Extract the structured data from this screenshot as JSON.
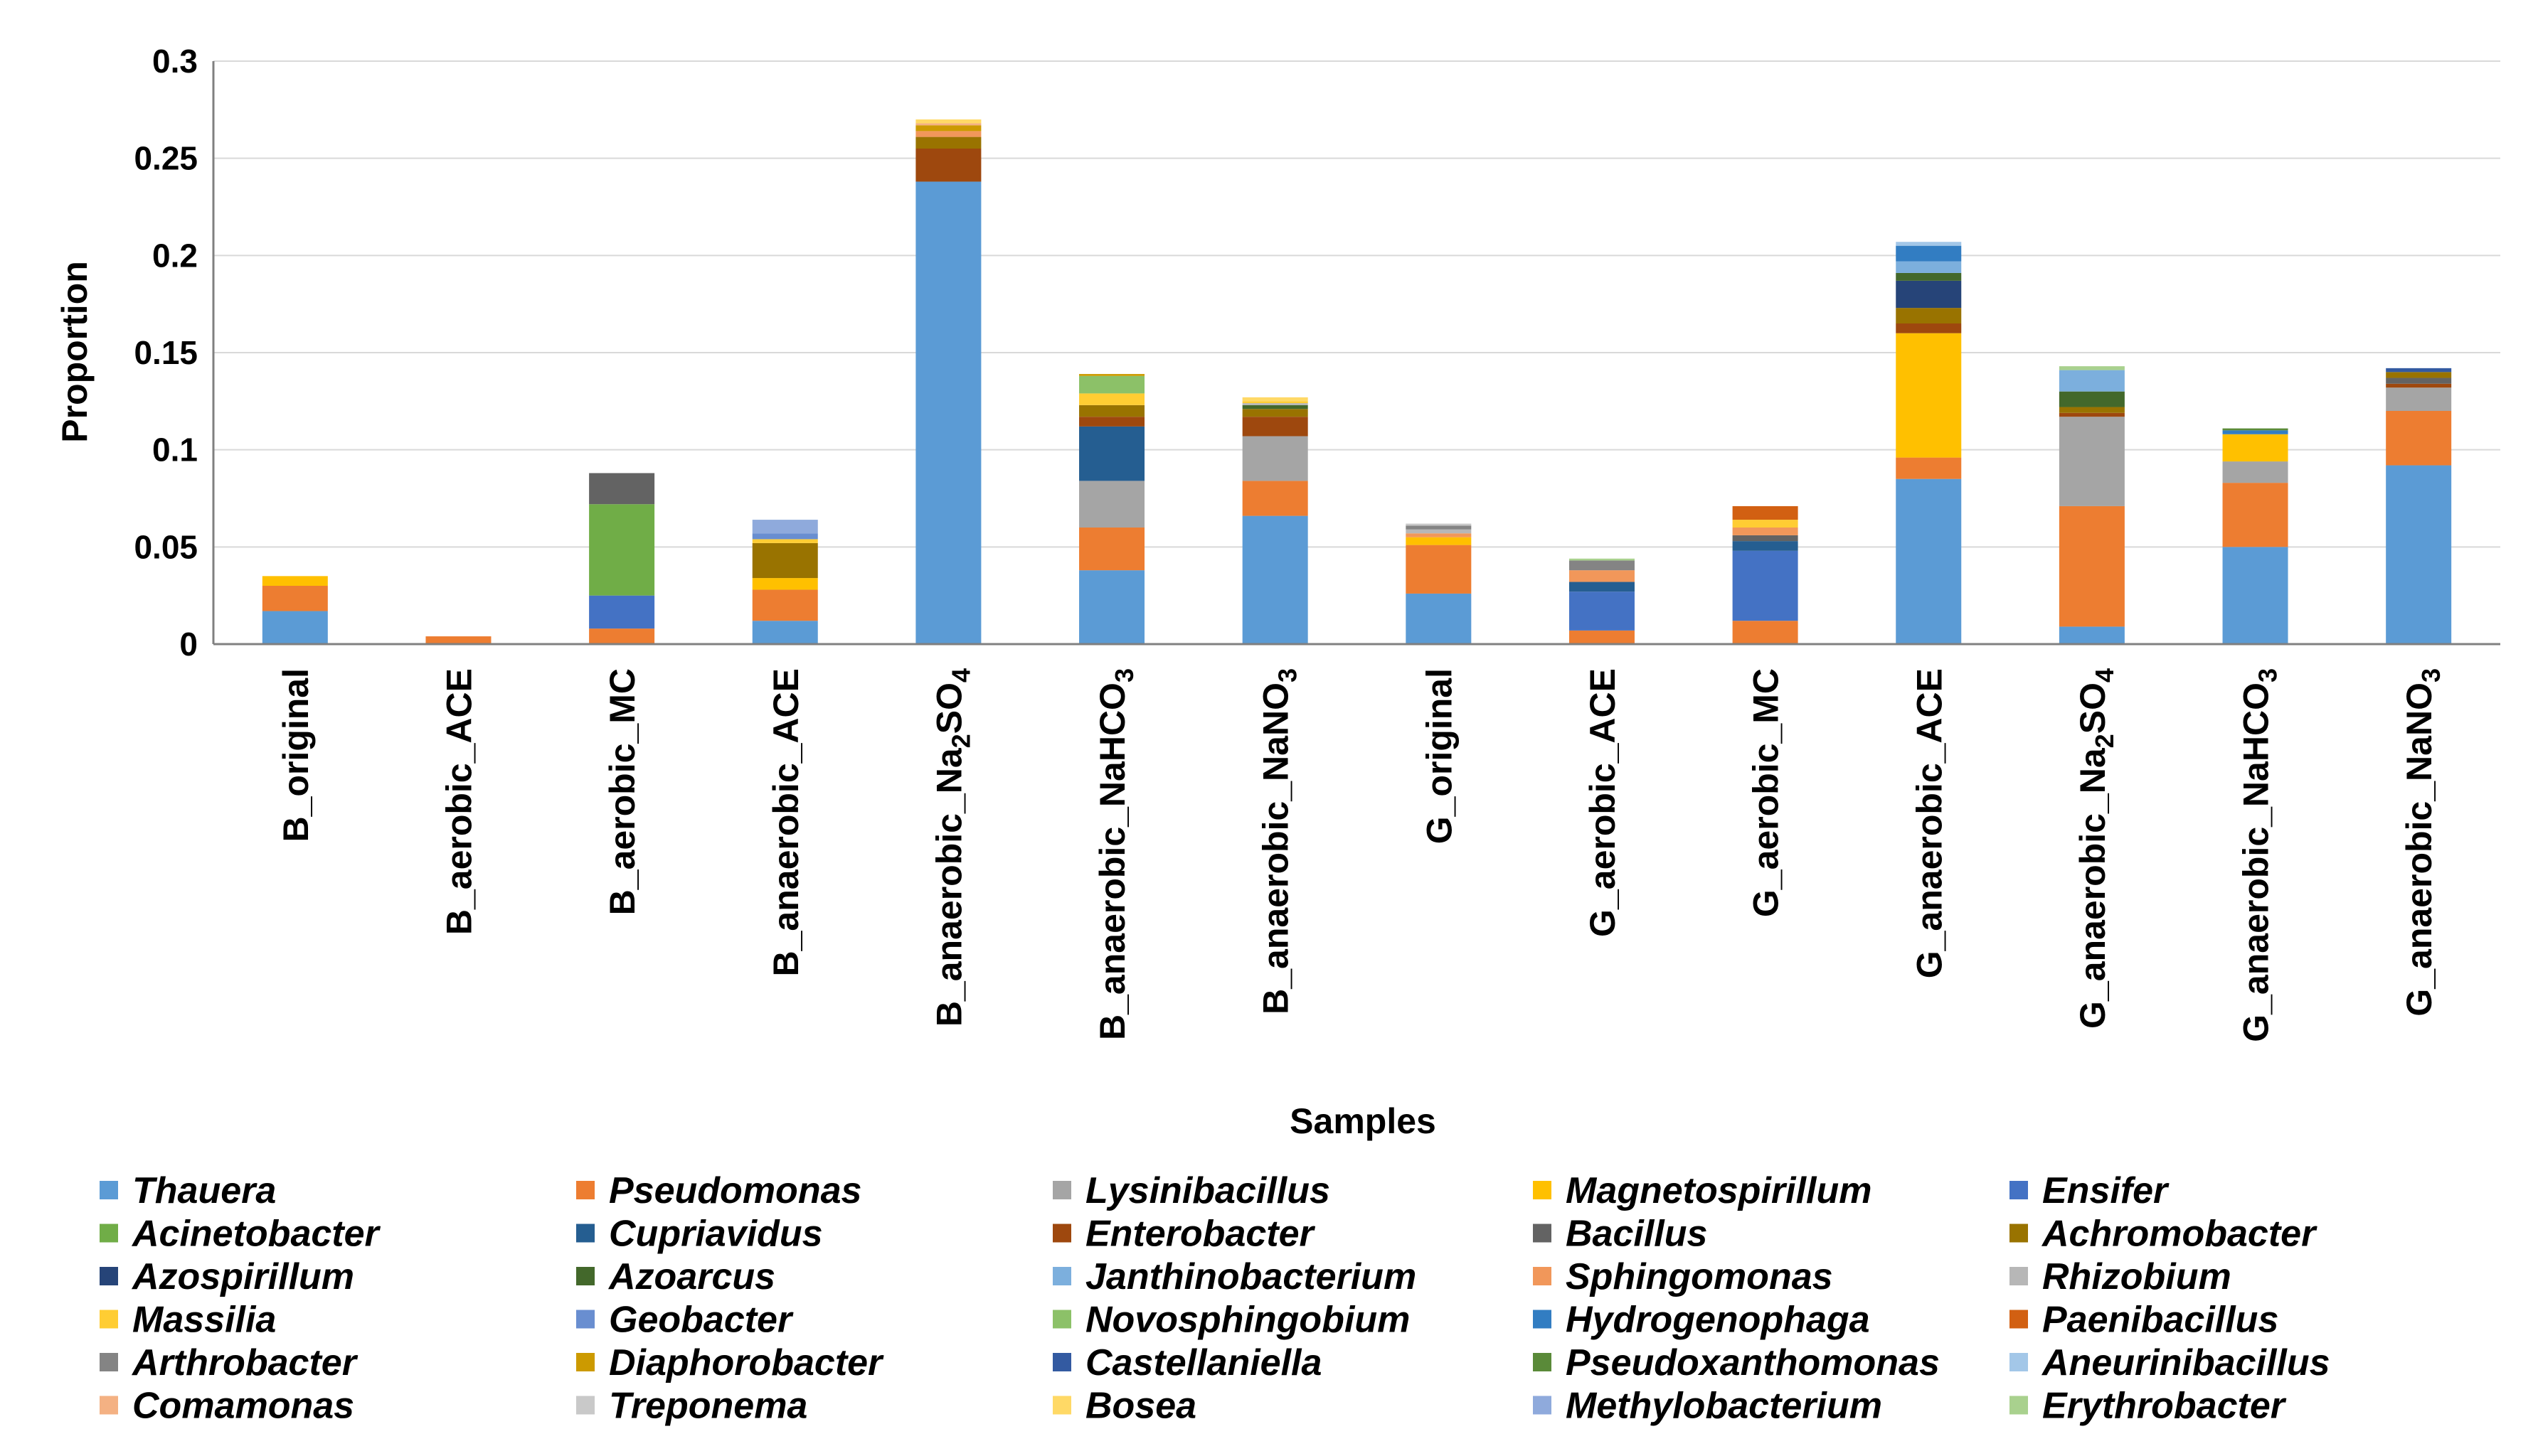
{
  "chart_data": {
    "type": "bar",
    "stacked": true,
    "title": "",
    "xlabel": "Samples",
    "ylabel": "Proportion",
    "ylim": [
      0,
      0.3
    ],
    "yticks": [
      0,
      0.05,
      0.1,
      0.15,
      0.2,
      0.25,
      0.3
    ],
    "ytick_labels": [
      "0",
      "0.05",
      "0.1",
      "0.15",
      "0.2",
      "0.25",
      "0.3"
    ],
    "grid": true,
    "legend_position": "bottom",
    "categories": [
      {
        "label": "B_original"
      },
      {
        "label": "B_aerobic_ACE"
      },
      {
        "label": "B_aerobic_MC"
      },
      {
        "label": "B_anaerobic_ACE"
      },
      {
        "label": "B_anaerobic_Na2SO4",
        "prefix": "B_anaerobic_Na",
        "sub1": "2",
        "mid": "SO",
        "sub2": "4"
      },
      {
        "label": "B_anaerobic_NaHCO3",
        "prefix": "B_anaerobic_NaHCO",
        "sub1": "3"
      },
      {
        "label": "B_anaerobic_NaNO3",
        "prefix": "B_anaerobic_NaNO",
        "sub1": "3"
      },
      {
        "label": "G_original"
      },
      {
        "label": "G_aerobic_ACE"
      },
      {
        "label": "G_aerobic_MC"
      },
      {
        "label": "G_anaerobic_ACE"
      },
      {
        "label": "G_anaerobic_Na2SO4",
        "prefix": "G_anaerobic_Na",
        "sub1": "2",
        "mid": "SO",
        "sub2": "4"
      },
      {
        "label": "G_anaerobic_NaHCO3",
        "prefix": "G_anaerobic_NaHCO",
        "sub1": "3"
      },
      {
        "label": "G_anaerobic_NaNO3",
        "prefix": "G_anaerobic_NaNO",
        "sub1": "3"
      }
    ],
    "series": [
      {
        "name": "Thauera",
        "color": "#5B9BD5",
        "values": [
          0.017,
          0,
          0,
          0.012,
          0.238,
          0.038,
          0.066,
          0.026,
          0,
          0,
          0.085,
          0.009,
          0.05,
          0.092
        ]
      },
      {
        "name": "Pseudomonas",
        "color": "#ED7D31",
        "values": [
          0.013,
          0.004,
          0.008,
          0.016,
          0,
          0.022,
          0.018,
          0.025,
          0.007,
          0.012,
          0.011,
          0.062,
          0.033,
          0.028
        ]
      },
      {
        "name": "Lysinibacillus",
        "color": "#A5A5A5",
        "values": [
          0,
          0,
          0,
          0,
          0,
          0.024,
          0.023,
          0,
          0,
          0,
          0,
          0.046,
          0.011,
          0.012
        ]
      },
      {
        "name": "Magnetospirillum",
        "color": "#FFC000",
        "values": [
          0.005,
          0,
          0,
          0.006,
          0,
          0,
          0,
          0.004,
          0,
          0,
          0.064,
          0,
          0.014,
          0
        ]
      },
      {
        "name": "Ensifer",
        "color": "#4472C4",
        "values": [
          0,
          0,
          0.017,
          0,
          0,
          0,
          0,
          0,
          0.02,
          0.036,
          0,
          0,
          0,
          0
        ]
      },
      {
        "name": "Acinetobacter",
        "color": "#70AD47",
        "values": [
          0,
          0,
          0.047,
          0,
          0,
          0,
          0,
          0,
          0,
          0,
          0,
          0,
          0,
          0
        ]
      },
      {
        "name": "Cupriavidus",
        "color": "#255E91",
        "values": [
          0,
          0,
          0,
          0,
          0,
          0.028,
          0,
          0,
          0.005,
          0.005,
          0,
          0,
          0,
          0
        ]
      },
      {
        "name": "Enterobacter",
        "color": "#9E480E",
        "values": [
          0,
          0,
          0,
          0,
          0.017,
          0.005,
          0.01,
          0,
          0,
          0,
          0.005,
          0.002,
          0,
          0.002
        ]
      },
      {
        "name": "Bacillus",
        "color": "#636363",
        "values": [
          0,
          0,
          0.016,
          0,
          0,
          0,
          0,
          0,
          0,
          0.003,
          0,
          0,
          0,
          0.003
        ]
      },
      {
        "name": "Achromobacter",
        "color": "#997300",
        "values": [
          0,
          0,
          0,
          0.018,
          0.006,
          0.006,
          0.004,
          0,
          0,
          0,
          0.008,
          0.003,
          0,
          0.003
        ]
      },
      {
        "name": "Azospirillum",
        "color": "#264478",
        "values": [
          0,
          0,
          0,
          0,
          0,
          0,
          0,
          0,
          0,
          0,
          0.014,
          0,
          0,
          0
        ]
      },
      {
        "name": "Azoarcus",
        "color": "#43682B",
        "values": [
          0,
          0,
          0,
          0,
          0,
          0,
          0.002,
          0,
          0,
          0,
          0.004,
          0.008,
          0,
          0
        ]
      },
      {
        "name": "Janthinobacterium",
        "color": "#7CAFDD",
        "values": [
          0,
          0,
          0,
          0,
          0,
          0,
          0,
          0,
          0,
          0,
          0.006,
          0.011,
          0,
          0
        ]
      },
      {
        "name": "Sphingomonas",
        "color": "#F1975A",
        "values": [
          0,
          0,
          0,
          0,
          0.003,
          0,
          0,
          0.002,
          0.006,
          0.004,
          0,
          0,
          0,
          0
        ]
      },
      {
        "name": "Rhizobium",
        "color": "#B7B7B7",
        "values": [
          0,
          0,
          0,
          0,
          0,
          0,
          0.001,
          0.002,
          0,
          0,
          0,
          0,
          0,
          0
        ]
      },
      {
        "name": "Massilia",
        "color": "#FFCD33",
        "values": [
          0,
          0,
          0,
          0.002,
          0,
          0.006,
          0.001,
          0,
          0,
          0.004,
          0,
          0,
          0,
          0
        ]
      },
      {
        "name": "Geobacter",
        "color": "#698ED0",
        "values": [
          0,
          0,
          0,
          0.003,
          0,
          0,
          0,
          0,
          0,
          0,
          0,
          0,
          0,
          0
        ]
      },
      {
        "name": "Novosphingobium",
        "color": "#8CC168",
        "values": [
          0,
          0,
          0,
          0,
          0,
          0.009,
          0,
          0,
          0,
          0,
          0,
          0,
          0,
          0
        ]
      },
      {
        "name": "Hydrogenophaga",
        "color": "#327DC2",
        "values": [
          0,
          0,
          0,
          0,
          0,
          0,
          0,
          0,
          0,
          0,
          0.008,
          0,
          0.002,
          0
        ]
      },
      {
        "name": "Paenibacillus",
        "color": "#D26012",
        "values": [
          0,
          0,
          0,
          0,
          0,
          0,
          0,
          0,
          0,
          0.007,
          0,
          0,
          0,
          0
        ]
      },
      {
        "name": "Arthrobacter",
        "color": "#848484",
        "values": [
          0,
          0,
          0,
          0,
          0,
          0,
          0,
          0.002,
          0.005,
          0,
          0,
          0,
          0,
          0
        ]
      },
      {
        "name": "Diaphorobacter",
        "color": "#CC9A00",
        "values": [
          0,
          0,
          0,
          0,
          0.003,
          0.001,
          0,
          0,
          0,
          0,
          0,
          0,
          0,
          0
        ]
      },
      {
        "name": "Castellaniella",
        "color": "#335AA1",
        "values": [
          0,
          0,
          0,
          0,
          0,
          0,
          0,
          0,
          0,
          0,
          0,
          0,
          0,
          0.002
        ]
      },
      {
        "name": "Pseudoxanthomonas",
        "color": "#5A8A39",
        "values": [
          0,
          0,
          0,
          0,
          0,
          0,
          0,
          0,
          0,
          0,
          0,
          0,
          0.001,
          0
        ]
      },
      {
        "name": "Aneurinibacillus",
        "color": "#A3C7E8",
        "values": [
          0,
          0,
          0,
          0,
          0,
          0,
          0,
          0,
          0,
          0,
          0.002,
          0,
          0,
          0
        ]
      },
      {
        "name": "Comamonas",
        "color": "#F4B183",
        "values": [
          0,
          0,
          0,
          0,
          0.001,
          0,
          0,
          0,
          0,
          0,
          0,
          0,
          0,
          0
        ]
      },
      {
        "name": "Treponema",
        "color": "#C9C9C9",
        "values": [
          0,
          0,
          0,
          0,
          0,
          0,
          0,
          0.001,
          0,
          0,
          0,
          0,
          0,
          0
        ]
      },
      {
        "name": "Bosea",
        "color": "#FFD966",
        "values": [
          0,
          0,
          0,
          0,
          0.002,
          0,
          0.002,
          0,
          0,
          0,
          0,
          0,
          0,
          0
        ]
      },
      {
        "name": "Methylobacterium",
        "color": "#8FAADC",
        "values": [
          0,
          0,
          0,
          0.007,
          0,
          0,
          0,
          0,
          0,
          0,
          0,
          0,
          0,
          0
        ]
      },
      {
        "name": "Erythrobacter",
        "color": "#A9D18E",
        "values": [
          0,
          0,
          0,
          0,
          0,
          0,
          0,
          0,
          0.001,
          0,
          0,
          0.002,
          0,
          0
        ]
      }
    ]
  }
}
